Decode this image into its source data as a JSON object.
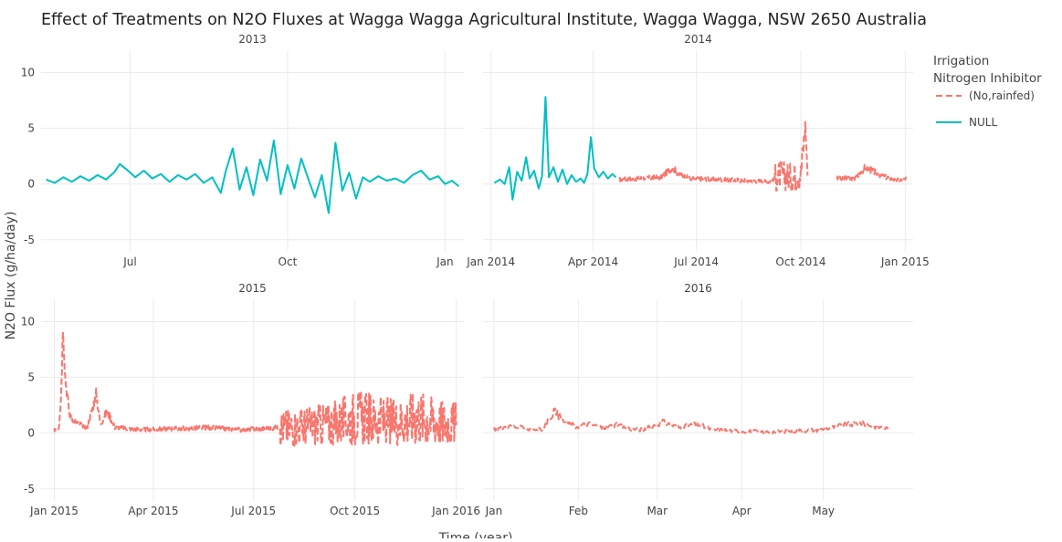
{
  "title": "Effect of Treatments on N2O Fluxes at Wagga Wagga Agricultural Institute, Wagga Wagga, NSW 2650 Australia",
  "xlabel": "Time (year)",
  "ylabel": "N2O Flux (g/ha/day)",
  "legend": {
    "title_line1": "Irrigation",
    "title_line2": "Nitrogen Inhibitor",
    "entries": [
      {
        "label": "(No,rainfed)",
        "color": "#F8766D",
        "style": "dashed"
      },
      {
        "label": "NULL",
        "color": "#00BFC4",
        "style": "solid"
      }
    ]
  },
  "colors": {
    "null": "#00BFC4",
    "rainfed": "#F8766D",
    "grid": "#ebebeb",
    "text": "#444444"
  },
  "chart_data": [
    {
      "type": "line",
      "panel": "2013",
      "ylim": [
        -6,
        12
      ],
      "yticks": [
        {
          "v": -5,
          "label": "-5"
        },
        {
          "v": 0,
          "label": "0"
        },
        {
          "v": 5,
          "label": "5"
        },
        {
          "v": 10,
          "label": "10"
        }
      ],
      "xlim": [
        0,
        247
      ],
      "xticks": [
        {
          "v": 52,
          "label": "Jul"
        },
        {
          "v": 144,
          "label": "Oct"
        },
        {
          "v": 236,
          "label": "Jan"
        }
      ],
      "series": [
        {
          "name": "NULL",
          "color": "#00BFC4",
          "style": "solid",
          "segments": [
            [
              [
                3,
                0.4
              ],
              [
                8,
                0.1
              ],
              [
                13,
                0.6
              ],
              [
                18,
                0.2
              ],
              [
                23,
                0.7
              ],
              [
                28,
                0.3
              ],
              [
                33,
                0.8
              ],
              [
                38,
                0.4
              ],
              [
                43,
                1.1
              ],
              [
                46,
                1.8
              ],
              [
                50,
                1.3
              ],
              [
                55,
                0.6
              ],
              [
                60,
                1.2
              ],
              [
                65,
                0.5
              ],
              [
                70,
                0.9
              ],
              [
                75,
                0.2
              ],
              [
                80,
                0.8
              ],
              [
                85,
                0.4
              ],
              [
                90,
                0.9
              ],
              [
                95,
                0.1
              ],
              [
                100,
                0.6
              ],
              [
                105,
                -0.8
              ],
              [
                108,
                1.2
              ],
              [
                112,
                3.2
              ],
              [
                116,
                -0.5
              ],
              [
                120,
                1.5
              ],
              [
                124,
                -1.0
              ],
              [
                128,
                2.2
              ],
              [
                132,
                0.3
              ],
              [
                136,
                3.9
              ],
              [
                140,
                -0.9
              ],
              [
                144,
                1.7
              ],
              [
                148,
                -0.4
              ],
              [
                152,
                2.3
              ],
              [
                156,
                0.5
              ],
              [
                160,
                -1.2
              ],
              [
                164,
                0.8
              ],
              [
                168,
                -2.6
              ],
              [
                172,
                3.7
              ],
              [
                176,
                -0.6
              ],
              [
                180,
                1.0
              ],
              [
                184,
                -1.3
              ],
              [
                188,
                0.6
              ],
              [
                192,
                0.2
              ],
              [
                197,
                0.7
              ],
              [
                202,
                0.3
              ],
              [
                207,
                0.5
              ],
              [
                212,
                0.1
              ],
              [
                217,
                0.8
              ],
              [
                222,
                1.2
              ],
              [
                227,
                0.4
              ],
              [
                232,
                0.7
              ],
              [
                236,
                0.0
              ],
              [
                240,
                0.3
              ],
              [
                244,
                -0.2
              ]
            ]
          ]
        }
      ]
    },
    {
      "type": "line",
      "panel": "2014",
      "ylim": [
        -6,
        12
      ],
      "yticks": [
        {
          "v": -5,
          "label": "-5"
        },
        {
          "v": 0,
          "label": "0"
        },
        {
          "v": 5,
          "label": "5"
        },
        {
          "v": 10,
          "label": "10"
        }
      ],
      "xlim": [
        -7,
        372
      ],
      "xticks": [
        {
          "v": 0,
          "label": "Jan 2014"
        },
        {
          "v": 90,
          "label": "Apr 2014"
        },
        {
          "v": 181,
          "label": "Jul 2014"
        },
        {
          "v": 273,
          "label": "Oct 2014"
        },
        {
          "v": 365,
          "label": "Jan 2015"
        }
      ],
      "series": [
        {
          "name": "NULL",
          "color": "#00BFC4",
          "style": "solid",
          "segments": [
            [
              [
                3,
                0.1
              ],
              [
                8,
                0.4
              ],
              [
                12,
                0.0
              ],
              [
                16,
                1.5
              ],
              [
                19,
                -1.4
              ],
              [
                23,
                1.1
              ],
              [
                27,
                0.3
              ],
              [
                31,
                2.4
              ],
              [
                34,
                0.5
              ],
              [
                38,
                1.2
              ],
              [
                42,
                -0.4
              ],
              [
                45,
                0.7
              ],
              [
                48,
                7.8
              ],
              [
                51,
                0.6
              ],
              [
                55,
                1.5
              ],
              [
                59,
                0.2
              ],
              [
                63,
                1.3
              ],
              [
                67,
                0.0
              ],
              [
                71,
                0.8
              ],
              [
                75,
                0.2
              ],
              [
                79,
                0.5
              ],
              [
                82,
                0.1
              ],
              [
                85,
                0.9
              ],
              [
                88,
                4.2
              ],
              [
                91,
                1.4
              ],
              [
                95,
                0.6
              ],
              [
                99,
                1.1
              ],
              [
                103,
                0.5
              ],
              [
                107,
                0.9
              ],
              [
                110,
                0.6
              ]
            ]
          ]
        },
        {
          "name": "(No,rainfed)",
          "color": "#F8766D",
          "style": "dashed",
          "noisy": true,
          "segments": [
            [
              [
                113,
                0.4
              ],
              [
                130,
                0.5
              ],
              [
                150,
                0.6
              ],
              [
                160,
                1.5
              ],
              [
                165,
                0.9
              ],
              [
                175,
                0.5
              ],
              [
                200,
                0.4
              ],
              [
                230,
                0.3
              ],
              [
                245,
                0.2
              ],
              [
                255,
                0.8
              ],
              [
                265,
                0.6
              ],
              [
                273,
                0.9
              ],
              [
                277,
                5.2
              ],
              [
                279,
                0.8
              ]
            ],
            [
              [
                305,
                0.6
              ],
              [
                320,
                0.4
              ],
              [
                330,
                1.5
              ],
              [
                345,
                0.7
              ],
              [
                360,
                0.3
              ],
              [
                366,
                0.4
              ]
            ]
          ]
        }
      ]
    },
    {
      "type": "line",
      "panel": "2015",
      "ylim": [
        -6,
        12
      ],
      "yticks": [
        {
          "v": -5,
          "label": "-5"
        },
        {
          "v": 0,
          "label": "0"
        },
        {
          "v": 5,
          "label": "5"
        },
        {
          "v": 10,
          "label": "10"
        }
      ],
      "xlim": [
        -12,
        372
      ],
      "xticks": [
        {
          "v": 0,
          "label": "Jan 2015"
        },
        {
          "v": 90,
          "label": "Apr 2015"
        },
        {
          "v": 181,
          "label": "Jul 2015"
        },
        {
          "v": 273,
          "label": "Oct 2015"
        },
        {
          "v": 365,
          "label": "Jan 2016"
        }
      ],
      "series": [
        {
          "name": "(No,rainfed)",
          "color": "#F8766D",
          "style": "dashed",
          "noisy": true,
          "segments": [
            [
              [
                0,
                0.3
              ],
              [
                4,
                0.5
              ],
              [
                6,
                3.0
              ],
              [
                8,
                10.0
              ],
              [
                10,
                5.0
              ],
              [
                14,
                1.5
              ],
              [
                20,
                1.0
              ],
              [
                30,
                0.5
              ],
              [
                38,
                3.5
              ],
              [
                42,
                0.8
              ],
              [
                48,
                2.0
              ],
              [
                55,
                0.5
              ],
              [
                80,
                0.3
              ],
              [
                110,
                0.4
              ],
              [
                140,
                0.5
              ],
              [
                170,
                0.3
              ],
              [
                205,
                0.5
              ],
              [
                225,
                0.6
              ],
              [
                245,
                0.8
              ],
              [
                260,
                1.0
              ],
              [
                275,
                1.5
              ],
              [
                290,
                1.2
              ],
              [
                310,
                1.0
              ],
              [
                330,
                1.5
              ],
              [
                350,
                1.0
              ],
              [
                365,
                0.8
              ]
            ]
          ]
        }
      ]
    },
    {
      "type": "line",
      "panel": "2016",
      "ylim": [
        -6,
        12
      ],
      "yticks": [
        {
          "v": -5,
          "label": "-5"
        },
        {
          "v": 0,
          "label": "0"
        },
        {
          "v": 5,
          "label": "5"
        },
        {
          "v": 10,
          "label": "10"
        }
      ],
      "xlim": [
        -4,
        154
      ],
      "xticks": [
        {
          "v": 0,
          "label": "Jan"
        },
        {
          "v": 31,
          "label": "Feb"
        },
        {
          "v": 60,
          "label": "Mar"
        },
        {
          "v": 91,
          "label": "Apr"
        },
        {
          "v": 121,
          "label": "May"
        }
      ],
      "series": [
        {
          "name": "(No,rainfed)",
          "color": "#F8766D",
          "style": "dashed",
          "noisy": true,
          "segments": [
            [
              [
                0,
                0.4
              ],
              [
                6,
                0.6
              ],
              [
                12,
                0.4
              ],
              [
                18,
                0.3
              ],
              [
                22,
                2.0
              ],
              [
                26,
                1.0
              ],
              [
                30,
                0.6
              ],
              [
                35,
                0.8
              ],
              [
                40,
                0.5
              ],
              [
                45,
                0.7
              ],
              [
                50,
                0.4
              ],
              [
                55,
                0.3
              ],
              [
                62,
                1.0
              ],
              [
                68,
                0.5
              ],
              [
                75,
                0.8
              ],
              [
                80,
                0.3
              ],
              [
                90,
                0.2
              ],
              [
                100,
                0.1
              ],
              [
                110,
                0.2
              ],
              [
                120,
                0.3
              ],
              [
                128,
                0.7
              ],
              [
                135,
                0.9
              ],
              [
                140,
                0.6
              ],
              [
                145,
                0.4
              ]
            ]
          ]
        }
      ]
    }
  ]
}
